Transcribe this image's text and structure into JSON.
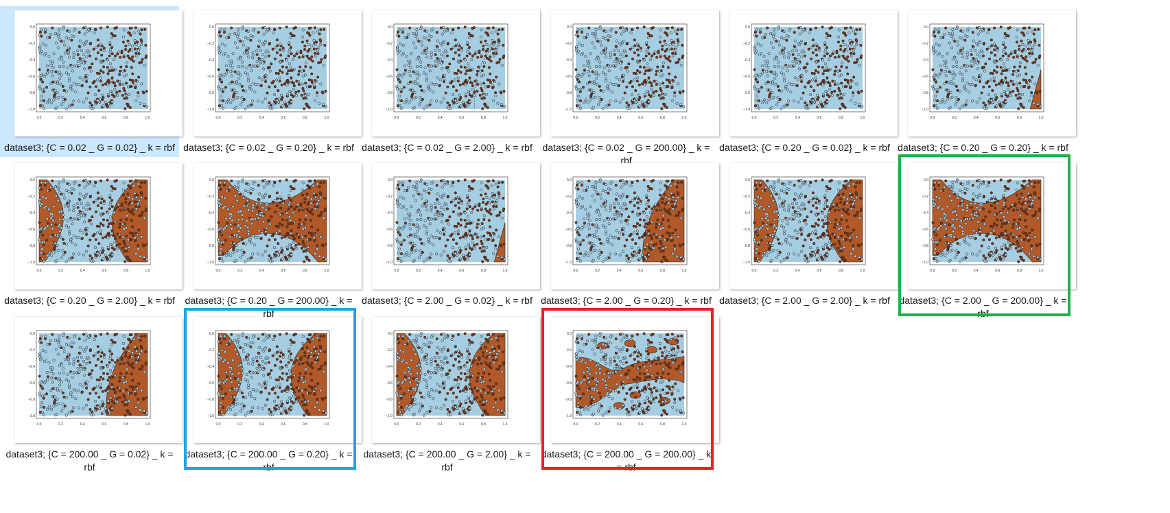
{
  "thumbnails": [
    {
      "caption": "dataset3; {C = 0.02 _ G = 0.02} _ k = rbf",
      "variant": "blank",
      "selected": true
    },
    {
      "caption": "dataset3; {C = 0.02 _ G = 0.20} _ k = rbf",
      "variant": "blank"
    },
    {
      "caption": "dataset3; {C = 0.02 _ G = 2.00} _ k = rbf",
      "variant": "lines"
    },
    {
      "caption": "dataset3; {C = 0.02 _ G = 200.00} _ k = rbf",
      "variant": "blank"
    },
    {
      "caption": "dataset3; {C = 0.20 _ G = 0.02} _ k = rbf",
      "variant": "blank"
    },
    {
      "caption": "dataset3; {C = 0.20 _ G = 0.20} _ k = rbf",
      "variant": "corner"
    },
    {
      "caption": "dataset3; {C = 0.20 _ G = 2.00} _ k = rbf",
      "variant": "two_sides"
    },
    {
      "caption": "dataset3; {C = 0.20 _ G = 200.00} _ k = rbf",
      "variant": "bowtie"
    },
    {
      "caption": "dataset3; {C = 2.00 _ G = 0.02} _ k = rbf",
      "variant": "corner"
    },
    {
      "caption": "dataset3; {C = 2.00 _ G = 0.20} _ k = rbf",
      "variant": "right_wedge"
    },
    {
      "caption": "dataset3; {C = 2.00 _ G = 2.00} _ k = rbf",
      "variant": "two_sides"
    },
    {
      "caption": "dataset3; {C = 2.00 _ G = 200.00} _ k = rbf",
      "variant": "bowtie",
      "highlight": "#22b14c"
    },
    {
      "caption": "dataset3; {C = 200.00 _ G = 0.02} _ k = rbf",
      "variant": "right_wedge"
    },
    {
      "caption": "dataset3; {C = 200.00 _ G = 0.20} _ k = rbf",
      "variant": "two_sides",
      "highlight": "#1ea5e6"
    },
    {
      "caption": "dataset3; {C = 200.00 _ G = 2.00} _ k = rbf",
      "variant": "two_sides"
    },
    {
      "caption": "dataset3; {C = 200.00 _ G = 200.00} _ k = rbf",
      "variant": "blobs",
      "highlight": "#e8202a"
    }
  ],
  "plot": {
    "x_ticks": [
      "0.0",
      "0.2",
      "0.4",
      "0.6",
      "0.8",
      "1.0"
    ],
    "y_ticks": [
      "0.0",
      "−0.2",
      "−0.4",
      "−0.6",
      "−0.8",
      "−1.0"
    ],
    "colors": {
      "background": "#a6cee3",
      "region": "#b15928",
      "point_brown": "#7a3515",
      "point_blue": "#a6cee3"
    }
  },
  "selection_color": "#cce8ff"
}
